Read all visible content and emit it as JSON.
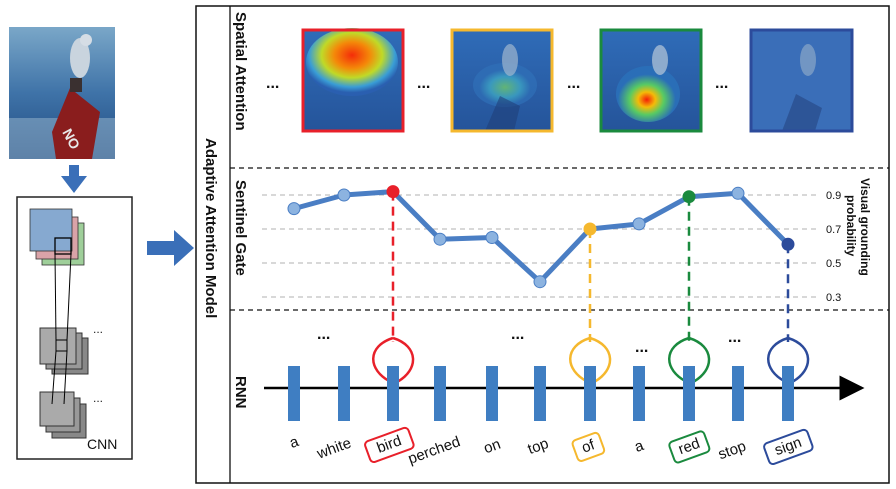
{
  "cnn": {
    "label": "CNN"
  },
  "model": {
    "title": "Adaptive Attention Model"
  },
  "rows": {
    "spatial": "Spatial Attention",
    "sentinel": "Sentinel Gate",
    "rnn": "RNN"
  },
  "ellipsis": "...",
  "axis": {
    "title_line1": "Visual grounding",
    "title_line2": "probability",
    "ticks": [
      "0.9",
      "0.7",
      "0.5",
      "0.3"
    ]
  },
  "words": [
    "a",
    "white",
    "bird",
    "perched",
    "on",
    "top",
    "of",
    "a",
    "red",
    "stop",
    "sign"
  ],
  "highlighted": {
    "bird": "#e8202a",
    "of": "#f5b82e",
    "red": "#1a8a3e",
    "sign": "#2c4b9b"
  },
  "colors": {
    "line": "#4a7ec4",
    "point": "#8cb3e0",
    "block": "#3f7ec2",
    "arrow": "#3a6fb8"
  },
  "chart_data": {
    "type": "line",
    "x": [
      "a",
      "white",
      "bird",
      "perched",
      "on",
      "top",
      "of",
      "a",
      "red",
      "stop",
      "sign"
    ],
    "series": [
      {
        "values": [
          0.82,
          0.9,
          0.92,
          0.64,
          0.65,
          0.39,
          0.7,
          0.73,
          0.89,
          0.91,
          0.61
        ]
      }
    ],
    "ylim": [
      0.3,
      0.9
    ],
    "yticks": [
      0.9,
      0.7,
      0.5,
      0.3
    ],
    "grid": true
  }
}
